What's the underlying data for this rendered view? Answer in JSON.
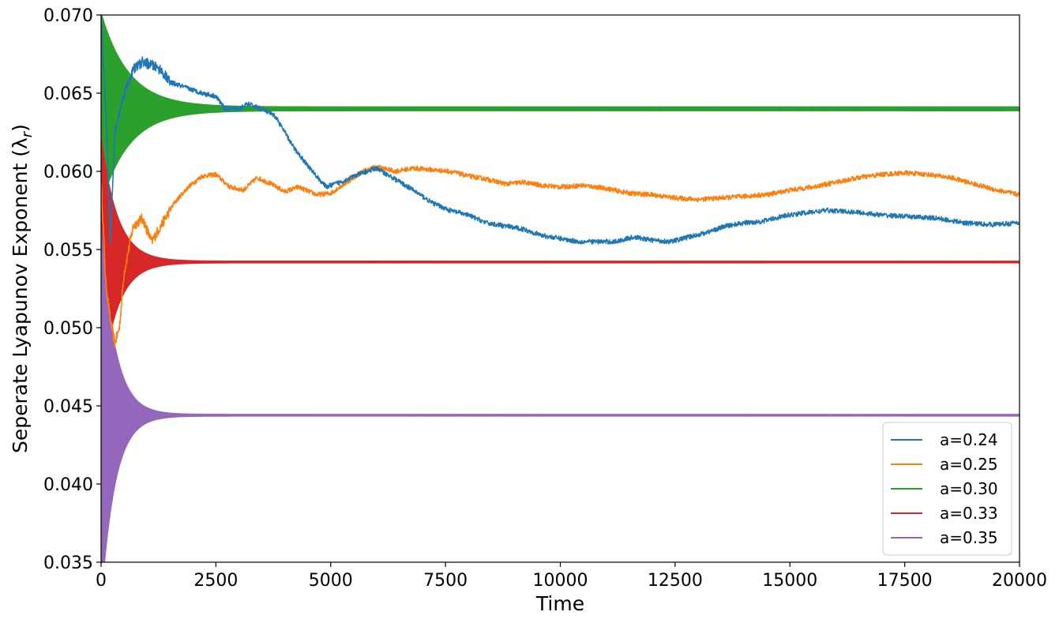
{
  "chart_data": {
    "type": "line",
    "title": "",
    "xlabel": "Time",
    "ylabel": "Seperate Lyapunov Exponent (λ",
    "ylabel_subscript": "r",
    "ylabel_suffix": ")",
    "xlim": [
      0,
      20000
    ],
    "ylim": [
      0.035,
      0.07
    ],
    "x_ticks": [
      0,
      2500,
      5000,
      7500,
      10000,
      12500,
      15000,
      17500,
      20000
    ],
    "x_tick_labels": [
      "0",
      "2500",
      "5000",
      "7500",
      "10000",
      "12500",
      "15000",
      "17500",
      "20000"
    ],
    "y_ticks": [
      0.035,
      0.04,
      0.045,
      0.05,
      0.055,
      0.06,
      0.065,
      0.07
    ],
    "y_tick_labels": [
      "0.035",
      "0.040",
      "0.045",
      "0.050",
      "0.055",
      "0.060",
      "0.065",
      "0.070"
    ],
    "grid": false,
    "legend_position": "lower-right",
    "series": [
      {
        "name": "a=0.24",
        "color": "#1f77b4",
        "noise": 0.0003,
        "points": [
          [
            0,
            0.07
          ],
          [
            100,
            0.064
          ],
          [
            200,
            0.0555
          ],
          [
            300,
            0.0625
          ],
          [
            500,
            0.065
          ],
          [
            700,
            0.0665
          ],
          [
            900,
            0.067
          ],
          [
            1100,
            0.0668
          ],
          [
            1300,
            0.0665
          ],
          [
            1500,
            0.0657
          ],
          [
            1700,
            0.0655
          ],
          [
            1900,
            0.0653
          ],
          [
            2200,
            0.065
          ],
          [
            2500,
            0.0648
          ],
          [
            2700,
            0.064
          ],
          [
            3000,
            0.064
          ],
          [
            3200,
            0.0643
          ],
          [
            3500,
            0.064
          ],
          [
            3800,
            0.0635
          ],
          [
            4200,
            0.0615
          ],
          [
            4600,
            0.06
          ],
          [
            4900,
            0.059
          ],
          [
            5200,
            0.0593
          ],
          [
            5600,
            0.0598
          ],
          [
            6000,
            0.0602
          ],
          [
            6400,
            0.0595
          ],
          [
            6800,
            0.0588
          ],
          [
            7200,
            0.058
          ],
          [
            7600,
            0.0575
          ],
          [
            8000,
            0.0572
          ],
          [
            8400,
            0.0567
          ],
          [
            8800,
            0.0565
          ],
          [
            9200,
            0.0563
          ],
          [
            9600,
            0.0559
          ],
          [
            10000,
            0.0557
          ],
          [
            10400,
            0.0555
          ],
          [
            10800,
            0.0555
          ],
          [
            11200,
            0.0555
          ],
          [
            11600,
            0.0558
          ],
          [
            12000,
            0.0556
          ],
          [
            12400,
            0.0555
          ],
          [
            12800,
            0.0558
          ],
          [
            13200,
            0.0561
          ],
          [
            13600,
            0.0565
          ],
          [
            14000,
            0.0567
          ],
          [
            14400,
            0.0568
          ],
          [
            14800,
            0.0571
          ],
          [
            15200,
            0.0573
          ],
          [
            15800,
            0.0575
          ],
          [
            16400,
            0.0574
          ],
          [
            17000,
            0.0572
          ],
          [
            17600,
            0.0571
          ],
          [
            18200,
            0.057
          ],
          [
            18800,
            0.0567
          ],
          [
            19400,
            0.0566
          ],
          [
            20000,
            0.0567
          ]
        ]
      },
      {
        "name": "a=0.25",
        "color": "#ff7f0e",
        "noise": 0.0003,
        "points": [
          [
            0,
            0.0595
          ],
          [
            100,
            0.053
          ],
          [
            200,
            0.0505
          ],
          [
            300,
            0.049
          ],
          [
            400,
            0.05
          ],
          [
            500,
            0.0535
          ],
          [
            700,
            0.0565
          ],
          [
            900,
            0.057
          ],
          [
            1100,
            0.0555
          ],
          [
            1300,
            0.0565
          ],
          [
            1600,
            0.058
          ],
          [
            1900,
            0.059
          ],
          [
            2200,
            0.0597
          ],
          [
            2500,
            0.0598
          ],
          [
            2800,
            0.059
          ],
          [
            3100,
            0.0588
          ],
          [
            3400,
            0.0596
          ],
          [
            3700,
            0.0592
          ],
          [
            4000,
            0.0587
          ],
          [
            4300,
            0.059
          ],
          [
            4700,
            0.0585
          ],
          [
            5000,
            0.0586
          ],
          [
            5300,
            0.0592
          ],
          [
            5700,
            0.06
          ],
          [
            6000,
            0.0603
          ],
          [
            6400,
            0.06
          ],
          [
            6800,
            0.0602
          ],
          [
            7200,
            0.0601
          ],
          [
            7600,
            0.06
          ],
          [
            8000,
            0.0597
          ],
          [
            8400,
            0.0595
          ],
          [
            8800,
            0.0592
          ],
          [
            9200,
            0.0593
          ],
          [
            9600,
            0.0591
          ],
          [
            10000,
            0.059
          ],
          [
            10500,
            0.0591
          ],
          [
            11000,
            0.0589
          ],
          [
            11500,
            0.0586
          ],
          [
            12000,
            0.0585
          ],
          [
            12500,
            0.0583
          ],
          [
            13000,
            0.0582
          ],
          [
            13500,
            0.0583
          ],
          [
            14000,
            0.0584
          ],
          [
            14500,
            0.0585
          ],
          [
            15000,
            0.0588
          ],
          [
            15500,
            0.059
          ],
          [
            16000,
            0.0593
          ],
          [
            16500,
            0.0596
          ],
          [
            17000,
            0.0598
          ],
          [
            17500,
            0.0599
          ],
          [
            18000,
            0.0598
          ],
          [
            18500,
            0.0596
          ],
          [
            19000,
            0.0592
          ],
          [
            19500,
            0.0588
          ],
          [
            20000,
            0.0585
          ]
        ]
      },
      {
        "name": "a=0.30",
        "color": "#2ca02c",
        "center": 0.064,
        "amp0": 0.006,
        "tau": 600,
        "amp_floor": 0.00012
      },
      {
        "name": "a=0.33",
        "color": "#d62728",
        "center": 0.0542,
        "amp0": 0.008,
        "tau": 350,
        "amp_floor": 5e-05
      },
      {
        "name": "a=0.35",
        "color": "#9467bd",
        "center": 0.0444,
        "amp0": 0.012,
        "tau": 300,
        "amp_floor": 5e-05
      }
    ]
  }
}
